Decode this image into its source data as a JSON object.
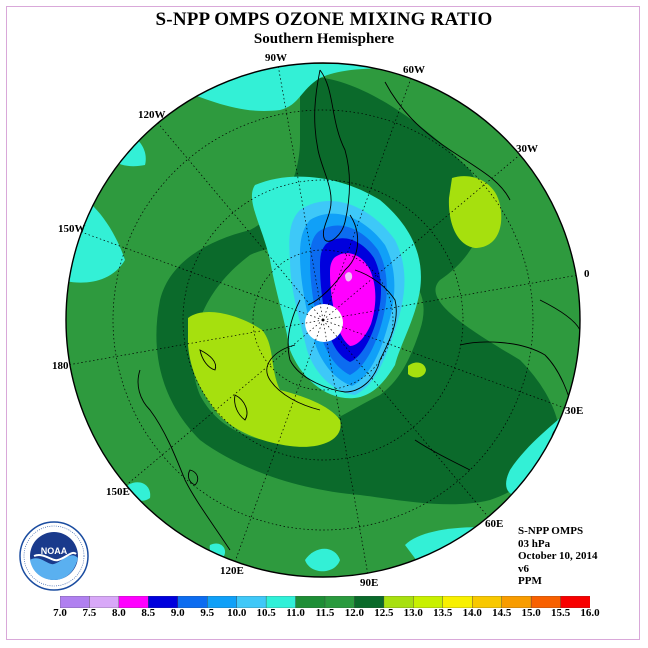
{
  "header": {
    "title": "S-NPP OMPS OZONE MIXING RATIO",
    "subtitle": "Southern Hemisphere"
  },
  "map": {
    "projection": "south-polar-stereographic",
    "longitude_labels": [
      "90W",
      "60W",
      "30W",
      "0",
      "30E",
      "60E",
      "90E",
      "120E",
      "150E",
      "180",
      "150W",
      "120W"
    ],
    "background_color": "#2e9a3e"
  },
  "info": {
    "instrument": "S-NPP OMPS",
    "level": "03 hPa",
    "date": "October 10, 2014",
    "version": "v6",
    "units": "PPM"
  },
  "colorbar": {
    "ticks": [
      "7.0",
      "7.5",
      "8.0",
      "8.5",
      "9.0",
      "9.5",
      "10.0",
      "10.5",
      "11.0",
      "11.5",
      "12.0",
      "12.5",
      "13.0",
      "13.5",
      "14.0",
      "14.5",
      "15.0",
      "15.5",
      "16.0"
    ],
    "colors": [
      "#b080f0",
      "#d8a8f8",
      "#ff00ff",
      "#0000dd",
      "#0c6cf0",
      "#10a0f8",
      "#40c8f8",
      "#30f0d8",
      "#1e8e36",
      "#2a9a3e",
      "#0a6a2a",
      "#a8e010",
      "#c8f000",
      "#f8f000",
      "#f8c800",
      "#f89c00",
      "#f86000",
      "#f80000",
      "#8a5a3a"
    ]
  },
  "logo": {
    "text": "NOAA",
    "ring_text": "NATIONAL OCEANIC AND ATMOSPHERIC ADMINISTRATION · U.S. DEPARTMENT OF COMMERCE"
  }
}
